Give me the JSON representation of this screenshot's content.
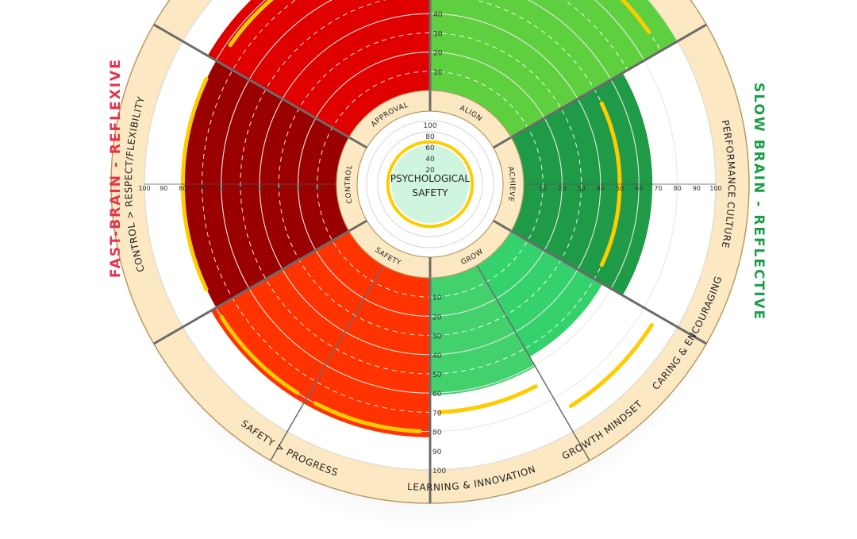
{
  "chart_data": {
    "type": "polar-bar",
    "center_title_line1": "PSYCHOLOGICAL",
    "center_title_line2": "SAFETY",
    "center_ticks": [
      "100",
      "80",
      "60",
      "40",
      "20"
    ],
    "center_score": 56,
    "radial_range": [
      0,
      100
    ],
    "side_label_left": "FAST-BRAIN - REFLEXIVE",
    "side_label_right": "SLOW BRAIN - REFLECTIVE",
    "axis_tick_labels": [
      "10",
      "20",
      "30",
      "40",
      "50",
      "60",
      "70",
      "80",
      "90",
      "100"
    ],
    "segments": [
      {
        "inner_label": "APPROVAL",
        "outer_label": "",
        "value": 85,
        "benchmark": 78,
        "color": "#E00000"
      },
      {
        "inner_label": "ALIGN",
        "outer_label": "",
        "value": 100,
        "benchmark": 90,
        "color": "#5ECF3E"
      },
      {
        "inner_label": "ACHIEVE",
        "outer_label": "PERFORMANCE CULTURE",
        "value": 67,
        "benchmark": 50,
        "color": "#1F9A47"
      },
      {
        "inner_label": "GROW",
        "outer_label": "CARING & ENCOURAGING",
        "value": 55,
        "benchmark": 88,
        "color": "#34D16C"
      },
      {
        "inner_label": "GROW",
        "outer_label": "GROWTH MINDSET",
        "value": 61,
        "benchmark": 70,
        "color": "#43D16E"
      },
      {
        "inner_label": "SAFETY",
        "outer_label": "LEARNING & INNOVATION",
        "value": 83,
        "benchmark": 80,
        "color": "#FF3300"
      },
      {
        "inner_label": "SAFETY",
        "outer_label": "SAFETY > PROGRESS",
        "value": 83,
        "benchmark": 80,
        "color": "#FF3300"
      },
      {
        "inner_label": "CONTROL",
        "outer_label": "CONTROL > RESPECT/FLEXIBILITY",
        "value": 80,
        "benchmark": 80,
        "color": "#9B0000"
      }
    ],
    "colors": {
      "accent_benchmark": "#FFCC00",
      "frame": "#FCE9C3",
      "frame_stroke": "#B79B66",
      "left_label": "#E3354A",
      "right_label": "#1D9C49"
    }
  }
}
